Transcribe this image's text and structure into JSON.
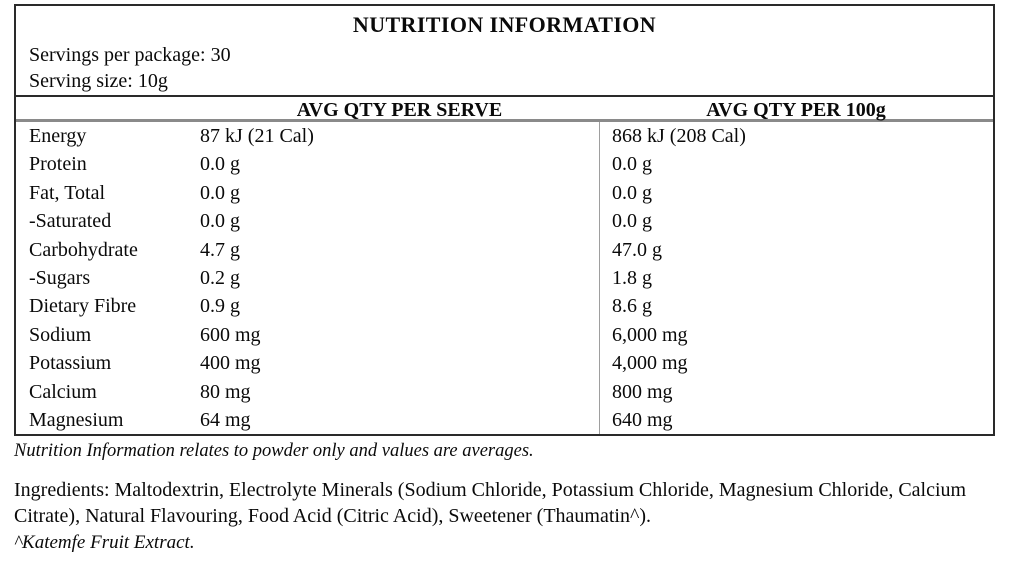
{
  "panel": {
    "title": "NUTRITION INFORMATION",
    "servings_per_package": "Servings per package: 30",
    "serving_size": "Serving size: 10g",
    "column_headers": {
      "per_serve": "AVG QTY PER SERVE",
      "per_100g": "AVG QTY PER 100g"
    },
    "rows": [
      {
        "nutrient": "Energy",
        "per_serve": "87 kJ (21 Cal)",
        "per_100g": "868 kJ (208 Cal)"
      },
      {
        "nutrient": "Protein",
        "per_serve": "0.0 g",
        "per_100g": "0.0 g"
      },
      {
        "nutrient": "Fat, Total",
        "per_serve": "0.0 g",
        "per_100g": "0.0 g"
      },
      {
        "nutrient": "-Saturated",
        "per_serve": "0.0 g",
        "per_100g": "0.0 g"
      },
      {
        "nutrient": "Carbohydrate",
        "per_serve": "4.7 g",
        "per_100g": "47.0 g"
      },
      {
        "nutrient": "-Sugars",
        "per_serve": "0.2 g",
        "per_100g": "1.8 g"
      },
      {
        "nutrient": "Dietary Fibre",
        "per_serve": "0.9 g",
        "per_100g": "8.6 g"
      },
      {
        "nutrient": "Sodium",
        "per_serve": "600 mg",
        "per_100g": "6,000 mg"
      },
      {
        "nutrient": "Potassium",
        "per_serve": "400 mg",
        "per_100g": "4,000 mg"
      },
      {
        "nutrient": "Calcium",
        "per_serve": "80 mg",
        "per_100g": "800 mg"
      },
      {
        "nutrient": "Magnesium",
        "per_serve": "64 mg",
        "per_100g": "640 mg"
      }
    ]
  },
  "footnotes": {
    "averages_note": "Nutrition Information relates to powder only and values are averages.",
    "ingredients": "Ingredients: Maltodextrin, Electrolyte Minerals (Sodium Chloride, Potassium Chloride, Magnesium Chloride, Calcium Citrate), Natural Flavouring, Food Acid (Citric Acid), Sweetener (Thaumatin^).",
    "sweetener_note": "^Katemfe Fruit Extract."
  },
  "colors": {
    "border-dark": "#2a2a2a",
    "rule-gray": "#8a8a8a",
    "divider-gray": "#9e9e9e",
    "text-black": "#0a0a0a"
  }
}
